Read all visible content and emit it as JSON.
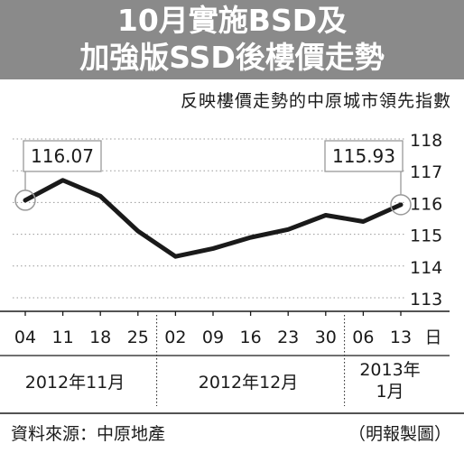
{
  "header": {
    "title_line1": "10月實施BSD及",
    "title_line2": "加強版SSD後樓價走勢",
    "background_color": "#8a8a8a"
  },
  "subtitle": "反映樓價走勢的中原城市領先指數",
  "chart_data": {
    "type": "line",
    "x": [
      "04",
      "11",
      "18",
      "25",
      "02",
      "09",
      "16",
      "23",
      "30",
      "06",
      "13"
    ],
    "x_unit": "日",
    "month_groups": [
      {
        "label": "2012年11月",
        "start": 0,
        "end": 3
      },
      {
        "label": "2012年12月",
        "start": 4,
        "end": 8
      },
      {
        "label": "2013年\n1月",
        "start": 9,
        "end": 10
      }
    ],
    "series": [
      {
        "values": [
          116.07,
          116.7,
          116.2,
          115.1,
          114.3,
          114.55,
          114.9,
          115.15,
          115.6,
          115.4,
          115.93
        ],
        "color": "#1a1a1a"
      }
    ],
    "y_ticks": [
      113,
      114,
      115,
      116,
      117,
      118
    ],
    "ylim": [
      113,
      118
    ],
    "axis_position": "right",
    "annotations": [
      {
        "label": "116.07",
        "index": 0
      },
      {
        "label": "115.93",
        "index": 10
      }
    ],
    "grid": "dotted-horizontal",
    "grid_color": "#999999"
  },
  "footer": {
    "source": "資料來源：中原地產",
    "credit": "（明報製圖）"
  }
}
